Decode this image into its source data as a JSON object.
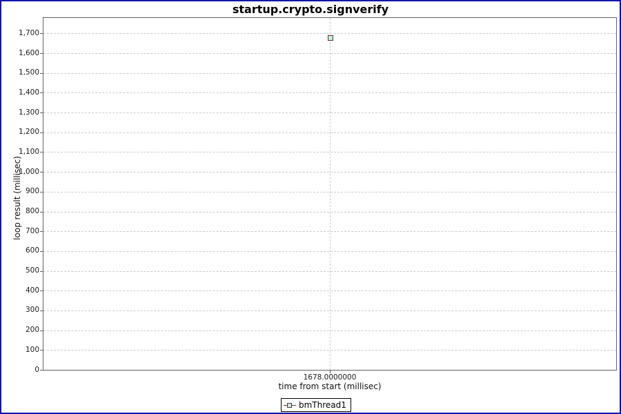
{
  "frame": {
    "border_color": "#1414A8",
    "background": "#FFFFFF"
  },
  "chart_data": {
    "type": "scatter",
    "title": "startup.crypto.signverify",
    "xlabel": "time from start (millisec)",
    "ylabel": "loop result (millisec)",
    "series": [
      {
        "name": "bmThread1",
        "points": [
          {
            "x": 1678.0,
            "y": 1678
          }
        ],
        "marker": {
          "shape": "square",
          "outline_color": "#553333",
          "fill_color": "#CCEEDD"
        }
      }
    ],
    "xlim": [
      1677.5,
      1678.5
    ],
    "ylim": [
      0,
      1778
    ],
    "x_ticks": [
      {
        "value": 1678.0,
        "label": "1678.0000000"
      }
    ],
    "y_ticks": {
      "min": 0,
      "max": 1700,
      "step": 100,
      "format": "thousands-comma"
    },
    "grid": {
      "style": "dashed",
      "color": "#CCCCCC"
    },
    "plot_border_color": "#616161",
    "legend_position": "bottom"
  },
  "legend": {
    "items": [
      {
        "label": "bmThread1"
      }
    ]
  }
}
